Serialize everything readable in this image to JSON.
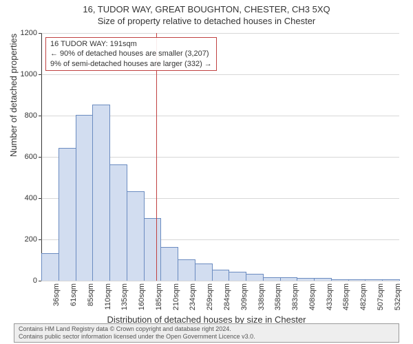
{
  "title": "16, TUDOR WAY, GREAT BOUGHTON, CHESTER, CH3 5XQ",
  "subtitle": "Size of property relative to detached houses in Chester",
  "chart": {
    "type": "histogram",
    "y_axis_title": "Number of detached properties",
    "x_axis_title": "Distribution of detached houses by size in Chester",
    "ylim": [
      0,
      1200
    ],
    "ytick_step": 200,
    "yticks": [
      0,
      200,
      400,
      600,
      800,
      1000,
      1200
    ],
    "x_labels": [
      "36sqm",
      "61sqm",
      "85sqm",
      "110sqm",
      "135sqm",
      "160sqm",
      "185sqm",
      "210sqm",
      "234sqm",
      "259sqm",
      "284sqm",
      "309sqm",
      "338sqm",
      "358sqm",
      "383sqm",
      "408sqm",
      "433sqm",
      "458sqm",
      "482sqm",
      "507sqm",
      "532sqm"
    ],
    "values": [
      130,
      640,
      800,
      850,
      560,
      430,
      300,
      160,
      100,
      80,
      50,
      40,
      30,
      15,
      15,
      10,
      10,
      5,
      5,
      5,
      5
    ],
    "bar_fill": "#d2ddf0",
    "bar_stroke": "#6a8bc0",
    "background_color": "#ffffff",
    "grid_color": "#b0b0b0",
    "reference_line": {
      "color": "#c04040",
      "position_sqm": 191,
      "label_line1": "16 TUDOR WAY: 191sqm",
      "label_line2": "← 90% of detached houses are smaller (3,207)",
      "label_line3": "9% of semi-detached houses are larger (332) →"
    }
  },
  "footer": {
    "line1": "Contains HM Land Registry data © Crown copyright and database right 2024.",
    "line2": "Contains public sector information licensed under the Open Government Licence v3.0."
  }
}
